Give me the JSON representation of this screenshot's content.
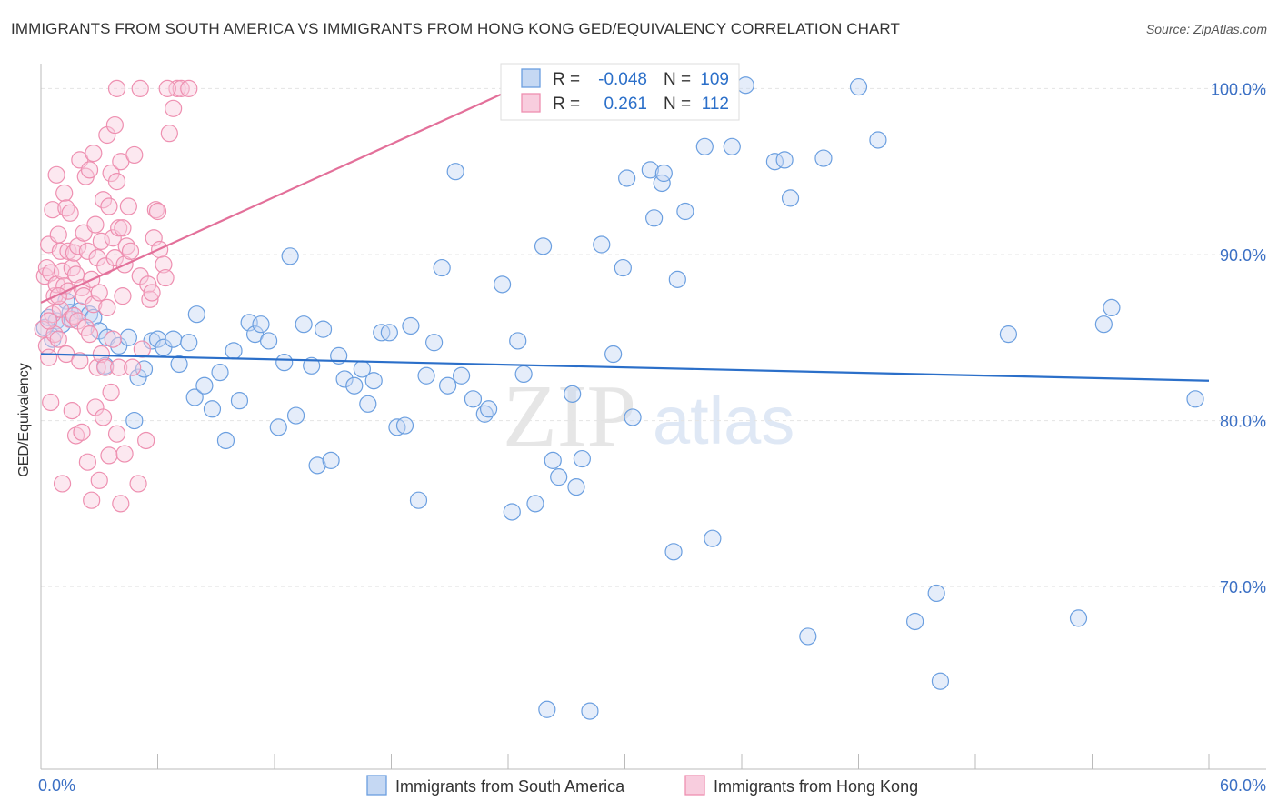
{
  "title": "IMMIGRANTS FROM SOUTH AMERICA VS IMMIGRANTS FROM HONG KONG GED/EQUIVALENCY CORRELATION CHART",
  "source": "Source: ZipAtlas.com",
  "watermark": {
    "zip": "ZIP",
    "atlas": "atlas"
  },
  "colors": {
    "blue": "#6b9fe0",
    "blue_fill": "#c5d8f3",
    "blue_line": "#2b6fc9",
    "pink": "#ee8fb0",
    "pink_fill": "#f8cdde",
    "pink_line": "#e3709a",
    "tick_text": "#3a6fc4"
  },
  "legend": {
    "r_label": "R =",
    "n_label": "N =",
    "rows": [
      {
        "series": "blue",
        "r": "-0.048",
        "n": "109"
      },
      {
        "series": "pink",
        "r": "0.261",
        "n": "112"
      }
    ]
  },
  "chart_data": {
    "type": "scatter",
    "title": "IMMIGRANTS FROM SOUTH AMERICA VS IMMIGRANTS FROM HONG KONG GED/EQUIVALENCY CORRELATION CHART",
    "xlabel": "",
    "ylabel": "GED/Equivalency",
    "xlim": [
      0,
      60
    ],
    "ylim": [
      59,
      101.5
    ],
    "x_tick_labels": [
      "0.0%",
      "60.0%"
    ],
    "y_ticks": [
      70,
      80,
      90,
      100
    ],
    "y_tick_labels": [
      "70.0%",
      "80.0%",
      "90.0%",
      "100.0%"
    ],
    "grid": true,
    "legend_position": "bottom",
    "series": [
      {
        "name": "Immigrants from South America",
        "color": "blue",
        "r": -0.048,
        "n": 109,
        "trend": {
          "x": [
            0,
            60
          ],
          "y": [
            84.0,
            82.4
          ]
        },
        "points": [
          [
            0.2,
            85.6
          ],
          [
            0.4,
            86.2
          ],
          [
            0.6,
            84.9
          ],
          [
            0.8,
            86.0
          ],
          [
            1.1,
            85.8
          ],
          [
            1.3,
            87.2
          ],
          [
            1.5,
            86.5
          ],
          [
            1.6,
            86.1
          ],
          [
            2.0,
            86.6
          ],
          [
            2.5,
            86.4
          ],
          [
            2.7,
            86.2
          ],
          [
            3.0,
            85.4
          ],
          [
            3.3,
            83.3
          ],
          [
            3.4,
            85.0
          ],
          [
            4.0,
            84.5
          ],
          [
            4.5,
            85.0
          ],
          [
            4.8,
            80.0
          ],
          [
            5.0,
            82.6
          ],
          [
            5.3,
            83.1
          ],
          [
            5.7,
            84.8
          ],
          [
            6.0,
            84.9
          ],
          [
            6.3,
            84.4
          ],
          [
            6.8,
            84.9
          ],
          [
            7.1,
            83.4
          ],
          [
            7.6,
            84.7
          ],
          [
            7.9,
            81.4
          ],
          [
            8.0,
            86.4
          ],
          [
            8.4,
            82.1
          ],
          [
            8.8,
            80.7
          ],
          [
            9.2,
            82.9
          ],
          [
            9.5,
            78.8
          ],
          [
            9.9,
            84.2
          ],
          [
            10.2,
            81.2
          ],
          [
            10.7,
            85.9
          ],
          [
            11.0,
            85.2
          ],
          [
            11.3,
            85.8
          ],
          [
            11.7,
            84.8
          ],
          [
            12.2,
            79.6
          ],
          [
            12.5,
            83.5
          ],
          [
            12.8,
            89.9
          ],
          [
            13.1,
            80.3
          ],
          [
            13.5,
            85.8
          ],
          [
            13.9,
            83.3
          ],
          [
            14.2,
            77.3
          ],
          [
            14.5,
            85.5
          ],
          [
            14.9,
            77.6
          ],
          [
            15.3,
            83.9
          ],
          [
            15.6,
            82.5
          ],
          [
            16.1,
            82.1
          ],
          [
            16.5,
            83.1
          ],
          [
            16.8,
            81.0
          ],
          [
            17.1,
            82.4
          ],
          [
            17.5,
            85.3
          ],
          [
            17.9,
            85.3
          ],
          [
            18.3,
            79.6
          ],
          [
            18.7,
            79.7
          ],
          [
            19.0,
            85.7
          ],
          [
            19.4,
            75.2
          ],
          [
            19.8,
            82.7
          ],
          [
            20.2,
            84.7
          ],
          [
            20.6,
            89.2
          ],
          [
            20.9,
            82.1
          ],
          [
            21.3,
            95.0
          ],
          [
            21.6,
            82.7
          ],
          [
            22.2,
            81.3
          ],
          [
            22.8,
            80.4
          ],
          [
            23.0,
            80.7
          ],
          [
            23.7,
            88.2
          ],
          [
            24.2,
            74.5
          ],
          [
            24.5,
            84.8
          ],
          [
            24.8,
            82.8
          ],
          [
            25.4,
            75.0
          ],
          [
            25.8,
            90.5
          ],
          [
            26.0,
            62.6
          ],
          [
            26.3,
            77.6
          ],
          [
            26.6,
            76.6
          ],
          [
            27.3,
            81.6
          ],
          [
            27.5,
            76.0
          ],
          [
            27.8,
            77.7
          ],
          [
            28.2,
            62.5
          ],
          [
            28.8,
            90.6
          ],
          [
            29.4,
            84.0
          ],
          [
            29.9,
            89.2
          ],
          [
            30.1,
            94.6
          ],
          [
            30.4,
            80.2
          ],
          [
            31.3,
            95.1
          ],
          [
            31.5,
            92.2
          ],
          [
            31.9,
            94.3
          ],
          [
            32.0,
            94.9
          ],
          [
            32.5,
            72.1
          ],
          [
            32.7,
            88.5
          ],
          [
            33.1,
            92.6
          ],
          [
            34.1,
            96.5
          ],
          [
            34.5,
            72.9
          ],
          [
            35.5,
            96.5
          ],
          [
            36.2,
            100.2
          ],
          [
            37.7,
            95.6
          ],
          [
            38.2,
            95.7
          ],
          [
            38.5,
            93.4
          ],
          [
            39.4,
            67.0
          ],
          [
            40.2,
            95.8
          ],
          [
            42.0,
            100.1
          ],
          [
            43.0,
            96.9
          ],
          [
            44.9,
            67.9
          ],
          [
            46.0,
            69.6
          ],
          [
            46.2,
            64.3
          ],
          [
            49.7,
            85.2
          ],
          [
            53.3,
            68.1
          ],
          [
            54.6,
            85.8
          ],
          [
            55.0,
            86.8
          ],
          [
            59.3,
            81.3
          ]
        ]
      },
      {
        "name": "Immigrants from Hong Kong",
        "color": "pink",
        "r": 0.261,
        "n": 112,
        "trend": {
          "x": [
            0,
            24.3
          ],
          "y": [
            87.1,
            100.0
          ]
        },
        "points": [
          [
            0.1,
            85.5
          ],
          [
            0.2,
            88.7
          ],
          [
            0.3,
            89.2
          ],
          [
            0.3,
            84.5
          ],
          [
            0.4,
            90.6
          ],
          [
            0.4,
            83.8
          ],
          [
            0.5,
            88.9
          ],
          [
            0.5,
            81.1
          ],
          [
            0.6,
            92.7
          ],
          [
            0.6,
            86.4
          ],
          [
            0.7,
            87.5
          ],
          [
            0.7,
            85.2
          ],
          [
            0.8,
            94.8
          ],
          [
            0.8,
            88.2
          ],
          [
            0.9,
            91.2
          ],
          [
            0.9,
            84.9
          ],
          [
            1.0,
            90.2
          ],
          [
            1.0,
            86.7
          ],
          [
            1.1,
            89.0
          ],
          [
            1.1,
            76.2
          ],
          [
            1.2,
            93.7
          ],
          [
            1.2,
            88.1
          ],
          [
            1.3,
            92.8
          ],
          [
            1.3,
            84.0
          ],
          [
            1.4,
            90.2
          ],
          [
            1.4,
            87.8
          ],
          [
            1.5,
            92.5
          ],
          [
            1.5,
            86.1
          ],
          [
            1.6,
            89.2
          ],
          [
            1.6,
            80.6
          ],
          [
            1.7,
            90.1
          ],
          [
            1.7,
            86.3
          ],
          [
            1.8,
            88.8
          ],
          [
            1.8,
            79.1
          ],
          [
            1.9,
            90.5
          ],
          [
            1.9,
            86.0
          ],
          [
            2.0,
            95.7
          ],
          [
            2.0,
            83.6
          ],
          [
            2.1,
            88.0
          ],
          [
            2.1,
            79.3
          ],
          [
            2.2,
            91.3
          ],
          [
            2.2,
            87.5
          ],
          [
            2.3,
            94.7
          ],
          [
            2.3,
            85.6
          ],
          [
            2.4,
            90.2
          ],
          [
            2.4,
            77.5
          ],
          [
            2.5,
            95.1
          ],
          [
            2.5,
            85.2
          ],
          [
            2.6,
            88.5
          ],
          [
            2.6,
            75.2
          ],
          [
            2.7,
            96.1
          ],
          [
            2.7,
            87.0
          ],
          [
            2.8,
            91.8
          ],
          [
            2.8,
            80.8
          ],
          [
            2.9,
            89.8
          ],
          [
            2.9,
            83.2
          ],
          [
            3.0,
            87.7
          ],
          [
            3.0,
            76.4
          ],
          [
            3.1,
            90.8
          ],
          [
            3.1,
            84.0
          ],
          [
            3.2,
            93.3
          ],
          [
            3.2,
            80.2
          ],
          [
            3.3,
            89.3
          ],
          [
            3.3,
            83.2
          ],
          [
            3.4,
            97.2
          ],
          [
            3.4,
            86.8
          ],
          [
            3.5,
            92.9
          ],
          [
            3.5,
            77.9
          ],
          [
            3.6,
            94.9
          ],
          [
            3.6,
            81.7
          ],
          [
            3.7,
            91.0
          ],
          [
            3.7,
            84.9
          ],
          [
            3.8,
            97.8
          ],
          [
            3.8,
            89.8
          ],
          [
            3.9,
            94.4
          ],
          [
            3.9,
            79.2
          ],
          [
            4.0,
            91.6
          ],
          [
            4.0,
            83.2
          ],
          [
            4.1,
            95.6
          ],
          [
            4.1,
            75.0
          ],
          [
            4.2,
            91.6
          ],
          [
            4.2,
            87.5
          ],
          [
            4.3,
            89.4
          ],
          [
            4.3,
            78.0
          ],
          [
            4.4,
            90.5
          ],
          [
            4.5,
            92.9
          ],
          [
            4.6,
            90.2
          ],
          [
            4.7,
            83.2
          ],
          [
            4.8,
            96.0
          ],
          [
            5.0,
            76.2
          ],
          [
            5.1,
            88.7
          ],
          [
            5.2,
            84.3
          ],
          [
            5.4,
            78.8
          ],
          [
            5.5,
            88.2
          ],
          [
            5.6,
            87.3
          ],
          [
            5.7,
            87.7
          ],
          [
            5.8,
            91.0
          ],
          [
            5.9,
            92.7
          ],
          [
            6.0,
            92.6
          ],
          [
            6.1,
            90.3
          ],
          [
            6.3,
            89.4
          ],
          [
            6.4,
            88.6
          ],
          [
            6.6,
            97.3
          ],
          [
            6.8,
            98.8
          ],
          [
            7.0,
            100.0
          ],
          [
            7.2,
            100.0
          ],
          [
            7.6,
            100.0
          ],
          [
            3.9,
            100.0
          ],
          [
            5.1,
            100.0
          ],
          [
            6.5,
            100.0
          ],
          [
            0.4,
            86.0
          ],
          [
            0.9,
            87.5
          ]
        ]
      }
    ]
  },
  "bottom_legend": [
    {
      "label": "Immigrants from South America",
      "color": "blue"
    },
    {
      "label": "Immigrants from Hong Kong",
      "color": "pink"
    }
  ]
}
